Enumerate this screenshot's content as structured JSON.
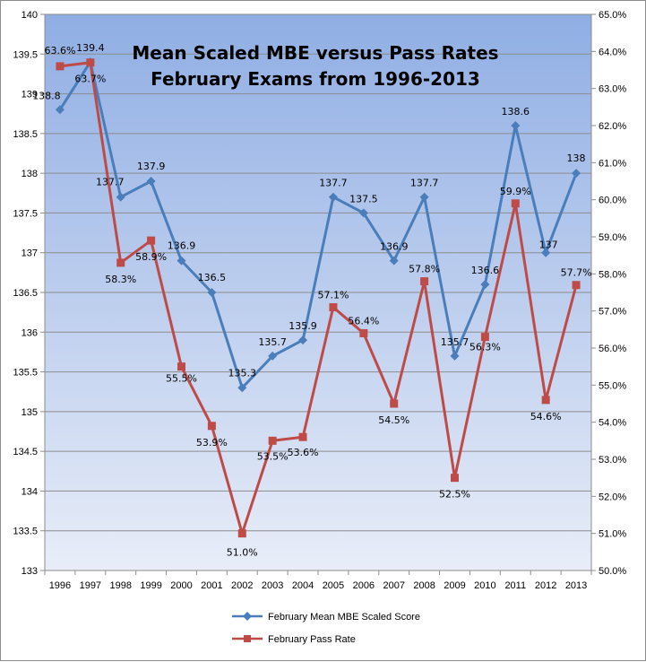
{
  "chart_data": {
    "type": "line",
    "title": [
      "Mean Scaled MBE versus Pass Rates",
      "February Exams from 1996-2013"
    ],
    "categories": [
      "1996",
      "1997",
      "1998",
      "1999",
      "2000",
      "2001",
      "2002",
      "2003",
      "2004",
      "2005",
      "2006",
      "2007",
      "2008",
      "2009",
      "2010",
      "2011",
      "2012",
      "2013"
    ],
    "left_axis": {
      "min": 133,
      "max": 140,
      "step": 0.5,
      "tick_labels": [
        "133",
        "133.5",
        "134",
        "134.5",
        "135",
        "135.5",
        "136",
        "136.5",
        "137",
        "137.5",
        "138",
        "138.5",
        "139",
        "139.5",
        "140"
      ]
    },
    "right_axis": {
      "min": 50,
      "max": 65,
      "step": 1,
      "tick_labels": [
        "50.0%",
        "51.0%",
        "52.0%",
        "53.0%",
        "54.0%",
        "55.0%",
        "56.0%",
        "57.0%",
        "58.0%",
        "59.0%",
        "60.0%",
        "61.0%",
        "62.0%",
        "63.0%",
        "64.0%",
        "65.0%"
      ]
    },
    "series": [
      {
        "name": "February Mean MBE Scaled Score",
        "axis": "left",
        "color": "#4a7ebb",
        "marker": "diamond",
        "values": [
          138.8,
          139.4,
          137.7,
          137.9,
          136.9,
          136.5,
          135.3,
          135.7,
          135.9,
          137.7,
          137.5,
          136.9,
          137.7,
          135.7,
          136.6,
          138.6,
          137,
          138
        ],
        "labels": [
          "138.8",
          "139.4",
          "137.7",
          "137.9",
          "136.9",
          "136.5",
          "135.3",
          "135.7",
          "135.9",
          "137.7",
          "137.5",
          "136.9",
          "137.7",
          "135.7",
          "136.6",
          "138.6",
          "137",
          "138"
        ]
      },
      {
        "name": "February Pass Rate",
        "axis": "right",
        "color": "#be4b48",
        "marker": "square",
        "values": [
          63.6,
          63.7,
          58.3,
          58.9,
          55.5,
          53.9,
          51.0,
          53.5,
          53.6,
          57.1,
          56.4,
          54.5,
          57.8,
          52.5,
          56.3,
          59.9,
          54.6,
          57.7
        ],
        "labels": [
          "63.6%",
          "63.7%",
          "58.3%",
          "58.9%",
          "55.5%",
          "53.9%",
          "51.0%",
          "53.5%",
          "53.6%",
          "57.1%",
          "56.4%",
          "54.5%",
          "57.8%",
          "52.5%",
          "56.3%",
          "59.9%",
          "54.6%",
          "57.7%"
        ]
      }
    ],
    "legend": "bottom-center",
    "grid": true
  }
}
